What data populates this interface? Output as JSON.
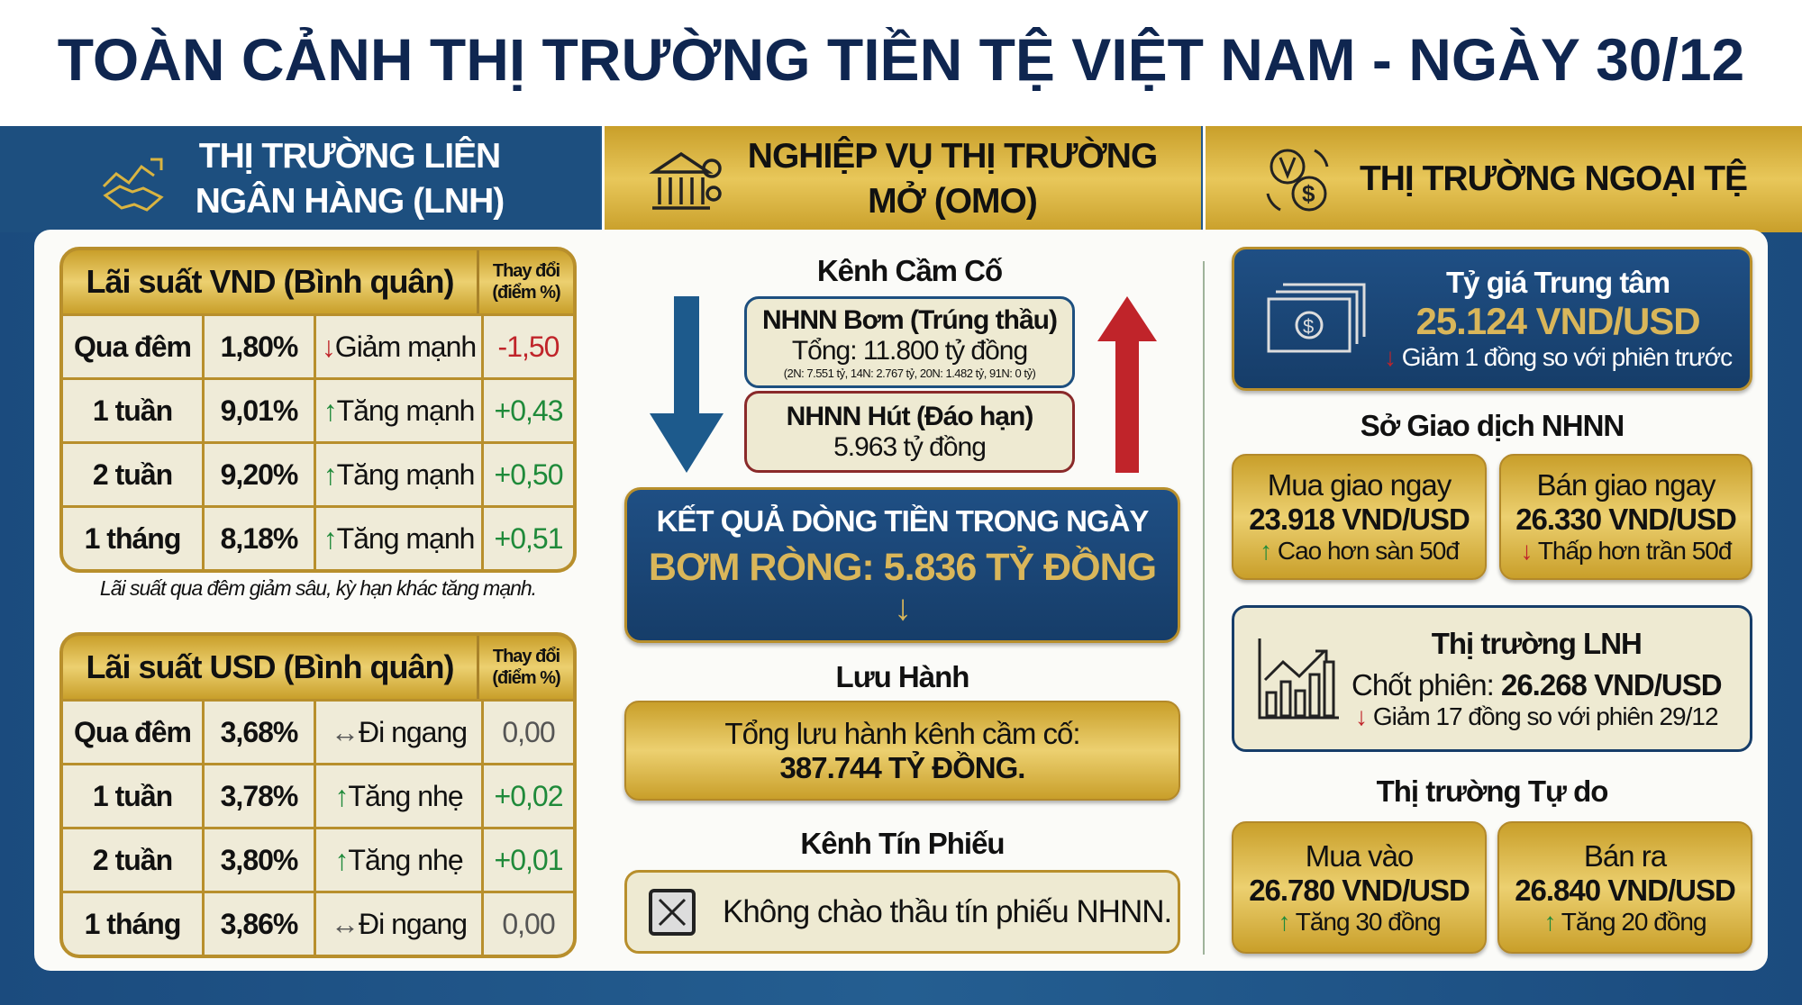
{
  "title": "TOÀN CẢNH THỊ TRƯỜNG TIỀN TỆ VIỆT NAM - NGÀY 30/12",
  "colors": {
    "navy": "#1d4f7f",
    "gold": "#d9b441",
    "cream": "#efebd8",
    "up": "#1f8a3a",
    "down": "#c0242a"
  },
  "headers": [
    {
      "icon": "handshake-chart-icon",
      "line1": "THỊ TRƯỜNG LIÊN",
      "line2": "NGÂN HÀNG (LNH)"
    },
    {
      "icon": "bank-gear-icon",
      "line1": "NGHIỆP VỤ THỊ TRƯỜNG",
      "line2": "MỞ (OMO)"
    },
    {
      "icon": "currency-exchange-icon",
      "line1": "THỊ TRƯỜNG NGOẠI TỆ",
      "line2": ""
    }
  ],
  "vnd": {
    "title": "Lãi suất VND (Bình quân)",
    "change_header": "Thay đổi (điểm %)",
    "rows": [
      {
        "term": "Qua đêm",
        "rate": "1,80%",
        "dir": "down",
        "trend": "Giảm mạnh",
        "change": "-1,50"
      },
      {
        "term": "1 tuần",
        "rate": "9,01%",
        "dir": "up",
        "trend": "Tăng mạnh",
        "change": "+0,43"
      },
      {
        "term": "2 tuần",
        "rate": "9,20%",
        "dir": "up",
        "trend": "Tăng mạnh",
        "change": "+0,50"
      },
      {
        "term": "1 tháng",
        "rate": "8,18%",
        "dir": "up",
        "trend": "Tăng mạnh",
        "change": "+0,51"
      }
    ],
    "note": "Lãi suất qua đêm giảm sâu, kỳ hạn khác tăng mạnh."
  },
  "usd": {
    "title": "Lãi suất USD (Bình quân)",
    "change_header": "Thay đổi (điểm %)",
    "rows": [
      {
        "term": "Qua đêm",
        "rate": "3,68%",
        "dir": "flat",
        "trend": "Đi ngang",
        "change": "0,00"
      },
      {
        "term": "1 tuần",
        "rate": "3,78%",
        "dir": "up",
        "trend": "Tăng nhẹ",
        "change": "+0,02"
      },
      {
        "term": "2 tuần",
        "rate": "3,80%",
        "dir": "up",
        "trend": "Tăng nhẹ",
        "change": "+0,01"
      },
      {
        "term": "1 tháng",
        "rate": "3,86%",
        "dir": "flat",
        "trend": "Đi ngang",
        "change": "0,00"
      }
    ]
  },
  "omo": {
    "cam_co_title": "Kênh Cầm Cố",
    "bom": {
      "title": "NHNN Bơm (Trúng thầu)",
      "total": "Tổng: 11.800 tỷ đồng",
      "detail": "(2N: 7.551 tỷ, 14N: 2.767 tỷ, 20N: 1.482 tỷ, 91N: 0 tỷ)"
    },
    "hut": {
      "title": "NHNN Hút (Đáo hạn)",
      "total": "5.963 tỷ đồng"
    },
    "result": {
      "title": "KẾT QUẢ DÒNG TIỀN TRONG NGÀY",
      "value": "BƠM RÒNG: 5.836 TỶ ĐỒNG"
    },
    "luu_hanh_title": "Lưu Hành",
    "luu_hanh": {
      "line1": "Tổng lưu hành kênh cầm cố:",
      "line2": "387.744 TỶ ĐỒNG."
    },
    "tin_phieu_title": "Kênh Tín Phiếu",
    "tin_phieu": "Không chào thầu tín phiếu NHNN."
  },
  "fx": {
    "central": {
      "title": "Tỷ giá Trung tâm",
      "value": "25.124 VND/USD",
      "change": "Giảm 1 đồng so với phiên trước"
    },
    "sgd_title": "Sở Giao dịch NHNN",
    "buy": {
      "label": "Mua giao ngay",
      "value": "23.918 VND/USD",
      "note": "Cao hơn sàn 50đ"
    },
    "sell": {
      "label": "Bán giao ngay",
      "value": "26.330 VND/USD",
      "note": "Thấp hơn trần 50đ"
    },
    "lnh": {
      "title": "Thị trường LNH",
      "label": "Chốt phiên: ",
      "value": "26.268 VND/USD",
      "change": "Giảm 17 đồng so với phiên 29/12"
    },
    "free_title": "Thị trường Tự do",
    "free_buy": {
      "label": "Mua vào",
      "value": "26.780 VND/USD",
      "note": "Tăng 30 đồng"
    },
    "free_sell": {
      "label": "Bán ra",
      "value": "26.840 VND/USD",
      "note": "Tăng 20 đồng"
    }
  }
}
